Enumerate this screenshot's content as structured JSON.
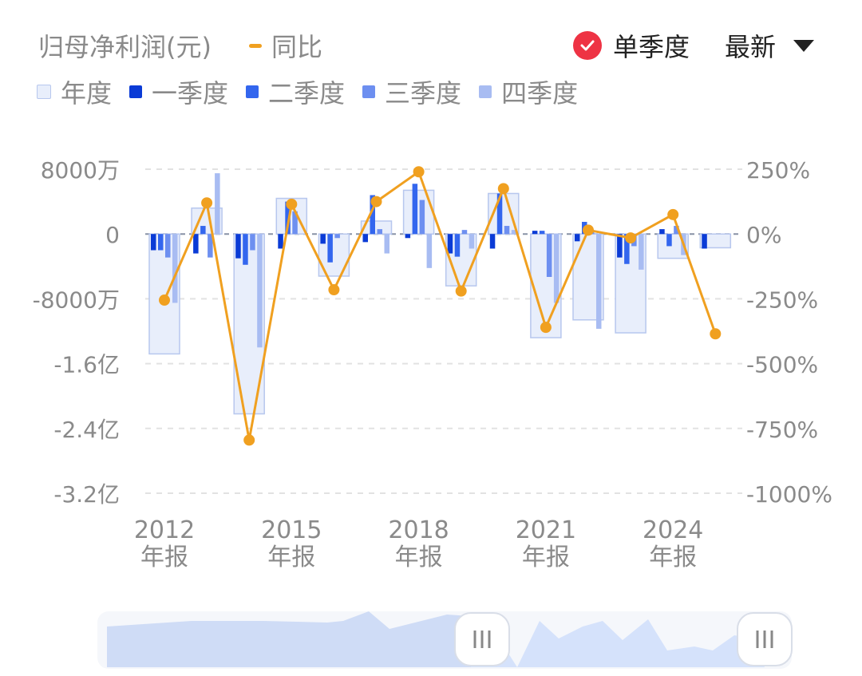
{
  "header": {
    "title": "归母净利润(元)",
    "yoy_label": "同比",
    "toggle_label": "单季度",
    "period_label": "最新"
  },
  "legend": [
    {
      "label": "年度",
      "color": "#e8eefb"
    },
    {
      "label": "一季度",
      "color": "#0a3bd6"
    },
    {
      "label": "二季度",
      "color": "#3366ee"
    },
    {
      "label": "三季度",
      "color": "#6d8ff0"
    },
    {
      "label": "四季度",
      "color": "#a8bcf2"
    }
  ],
  "chart_data": {
    "type": "bar",
    "categories": [
      "2012",
      "2013",
      "2014",
      "2015",
      "2016",
      "2017",
      "2018",
      "2019",
      "2020",
      "2021",
      "2022",
      "2023",
      "2024",
      "2025"
    ],
    "x_tick_labels": [
      "2012\n年报",
      "2015\n年报",
      "2018\n年报",
      "2021\n年报",
      "2024\n年报"
    ],
    "x_tick_years": [
      "2012",
      "2015",
      "2018",
      "2021",
      "2024"
    ],
    "y_left_ticks": [
      "8000万",
      "0",
      "-8000万",
      "-1.6亿",
      "-2.4亿",
      "-3.2亿"
    ],
    "y_right_ticks": [
      "250%",
      "0%",
      "-250%",
      "-500%",
      "-750%",
      "-1000%"
    ],
    "y_left_range_wan": [
      -32000,
      8000
    ],
    "y_right_range_pct": [
      -1000,
      250
    ],
    "series": [
      {
        "name": "年度",
        "unit": "万元",
        "values": [
          -14800,
          3200,
          -22200,
          4400,
          -5200,
          1600,
          5400,
          -6400,
          5000,
          -12800,
          -10600,
          -12200,
          -3000,
          -1700
        ]
      },
      {
        "name": "一季度",
        "unit": "万元",
        "values": [
          -2000,
          -2400,
          -3000,
          -1800,
          -1200,
          -1000,
          -500,
          -2400,
          -1800,
          400,
          -900,
          -2900,
          600,
          -1800
        ]
      },
      {
        "name": "二季度",
        "unit": "万元",
        "values": [
          -2000,
          1000,
          -3800,
          4000,
          -3500,
          4800,
          6200,
          -2800,
          5000,
          400,
          1500,
          -3700,
          -1500,
          0
        ]
      },
      {
        "name": "三季度",
        "unit": "万元",
        "values": [
          -2900,
          -2900,
          -2000,
          2800,
          -500,
          600,
          4200,
          500,
          1000,
          -5300,
          500,
          -1500,
          1000,
          0
        ]
      },
      {
        "name": "四季度",
        "unit": "万元",
        "values": [
          -8500,
          7500,
          -14000,
          0,
          0,
          -2400,
          -4200,
          -1800,
          500,
          -8500,
          -11700,
          -4400,
          -2600,
          0
        ]
      },
      {
        "name": "同比",
        "unit": "%",
        "values": [
          -255,
          120,
          -795,
          115,
          -215,
          125,
          240,
          -220,
          175,
          -360,
          15,
          -15,
          75,
          -385
        ]
      }
    ]
  }
}
